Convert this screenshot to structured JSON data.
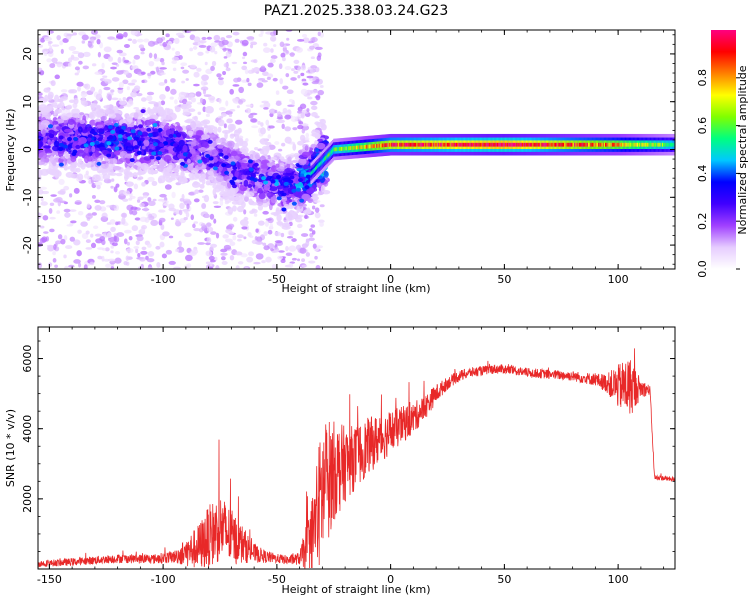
{
  "title": "PAZ1.2025.338.03.24.G23",
  "chart_data": [
    {
      "type": "heatmap",
      "name": "spectrogram",
      "xlabel": "Height of straight line (km)",
      "ylabel": "Frequency (Hz)",
      "xlim": [
        -155,
        125
      ],
      "ylim": [
        -25,
        25
      ],
      "xticks": [
        -150,
        -100,
        -50,
        0,
        50,
        100
      ],
      "xtick_labels": [
        "-150",
        "-100",
        "-50",
        "0",
        "50",
        "100"
      ],
      "yticks": [
        -20,
        -10,
        0,
        10,
        20
      ],
      "ytick_labels": [
        "-20",
        "-10",
        "0",
        "10",
        "20"
      ],
      "colorbar": {
        "label": "Normalized spectral amplitude",
        "range": [
          0.0,
          1.0
        ],
        "ticks": [
          0.0,
          0.2,
          0.4,
          0.6,
          0.8
        ],
        "tick_labels": [
          "0.0",
          "0.2",
          "0.4",
          "0.6",
          "0.8"
        ],
        "colors": [
          "#ffffff",
          "#e6ccff",
          "#a040ff",
          "#4000ff",
          "#0000ff",
          "#00c8ff",
          "#00ff80",
          "#80ff00",
          "#ffff00",
          "#ff8000",
          "#ff0000",
          "#ff0080"
        ]
      },
      "ridge": {
        "description_points": [
          {
            "x": -150,
            "f": 2.0,
            "amp": 0.25
          },
          {
            "x": -125,
            "f": 2.0,
            "amp": 0.3
          },
          {
            "x": -100,
            "f": 1.5,
            "amp": 0.28
          },
          {
            "x": -80,
            "f": -1.0,
            "amp": 0.22
          },
          {
            "x": -65,
            "f": -5.0,
            "amp": 0.22
          },
          {
            "x": -45,
            "f": -8.0,
            "amp": 0.3
          },
          {
            "x": -35,
            "f": -5.0,
            "amp": 0.45
          },
          {
            "x": -25,
            "f": 0.0,
            "amp": 0.55
          },
          {
            "x": 0,
            "f": 1.0,
            "amp": 0.85
          },
          {
            "x": 50,
            "f": 1.0,
            "amp": 0.95
          },
          {
            "x": 100,
            "f": 1.0,
            "amp": 0.75
          },
          {
            "x": 125,
            "f": 1.0,
            "amp": 0.55
          }
        ]
      }
    },
    {
      "type": "line",
      "name": "snr",
      "xlabel": "Height of straight line (km)",
      "ylabel": "SNR (10 * v/v)",
      "xlim": [
        -155,
        125
      ],
      "ylim": [
        0,
        6900
      ],
      "xticks": [
        -150,
        -100,
        -50,
        0,
        50,
        100
      ],
      "xtick_labels": [
        "-150",
        "-100",
        "-50",
        "0",
        "50",
        "100"
      ],
      "yticks": [
        2000,
        4000,
        6000
      ],
      "ytick_labels": [
        "2000",
        "4000",
        "6000"
      ],
      "color": "#e82828",
      "series": [
        {
          "name": "SNR",
          "x": [
            -155,
            -140,
            -120,
            -105,
            -95,
            -85,
            -80,
            -75,
            -70,
            -65,
            -60,
            -55,
            -50,
            -45,
            -40,
            -35,
            -32,
            -30,
            -28,
            -25,
            -22,
            -20,
            -15,
            -10,
            -5,
            0,
            5,
            10,
            15,
            20,
            25,
            30,
            35,
            40,
            45,
            50,
            55,
            60,
            70,
            80,
            90,
            95,
            100,
            105,
            110,
            114,
            116,
            118,
            125
          ],
          "y": [
            150,
            200,
            300,
            280,
            350,
            600,
            900,
            1200,
            900,
            700,
            450,
            350,
            300,
            250,
            300,
            800,
            1600,
            2200,
            2500,
            2800,
            2900,
            3000,
            3200,
            3500,
            3700,
            3900,
            4100,
            4300,
            4600,
            5000,
            5300,
            5500,
            5600,
            5650,
            5700,
            5700,
            5650,
            5600,
            5550,
            5500,
            5400,
            5300,
            5200,
            5200,
            5150,
            5100,
            2600,
            2600,
            2550
          ],
          "noise": [
            100,
            120,
            140,
            150,
            200,
            700,
            1000,
            1100,
            900,
            600,
            300,
            200,
            150,
            150,
            200,
            1200,
            2000,
            2200,
            2000,
            1600,
            1400,
            1200,
            1000,
            900,
            800,
            700,
            600,
            500,
            400,
            300,
            200,
            180,
            160,
            150,
            150,
            150,
            150,
            150,
            150,
            160,
            200,
            300,
            700,
            1000,
            300,
            150,
            80,
            80,
            80
          ]
        }
      ]
    }
  ]
}
